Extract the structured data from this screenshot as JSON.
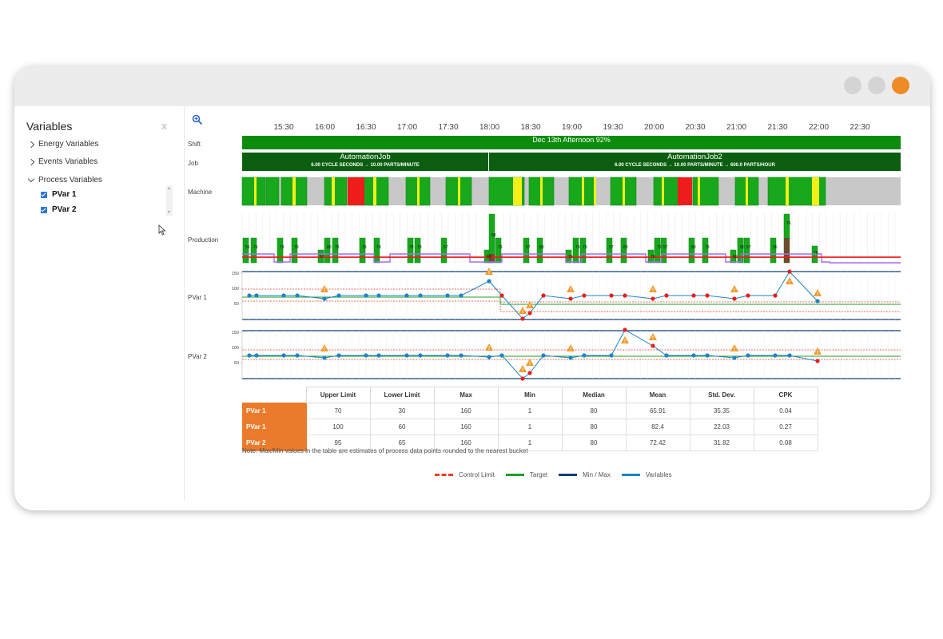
{
  "window": {
    "controls": [
      "minimize",
      "maximize",
      "close"
    ],
    "accent": "#ef8b25"
  },
  "sidebar": {
    "title": "Variables",
    "close_label": "x",
    "items": [
      {
        "label": "Energy Variables",
        "expanded": false
      },
      {
        "label": "Events Variables",
        "expanded": false
      },
      {
        "label": "Process Variables",
        "expanded": true
      }
    ],
    "process_variables": [
      {
        "label": "PVar 1",
        "checked": true
      },
      {
        "label": "PVar 2",
        "checked": true
      }
    ]
  },
  "timeline": {
    "times": [
      "15:30",
      "16:00",
      "16:30",
      "17:00",
      "17:30",
      "18:00",
      "18:30",
      "19:00",
      "19:30",
      "20:00",
      "20:30",
      "21:00",
      "21:30",
      "22:00",
      "22:30"
    ]
  },
  "rows": {
    "shift_label": "Shift",
    "job_label": "Job",
    "machine_label": "Machine",
    "production_label": "Production",
    "pvar1_label": "PVar 1",
    "pvar2_label": "PVar 2"
  },
  "shift": {
    "text": "Dec 13th Afternoon 92%"
  },
  "jobs": [
    {
      "name": "AutomationJob",
      "details": "6.00 CYCLE SECONDS → 10.00 PARTS/MINUTE"
    },
    {
      "name": "AutomationJob2",
      "details": "6.00 CYCLE SECONDS → 10.00 PARTS/MINUTE → 600.0 PARTS/HOUR"
    }
  ],
  "colors": {
    "running": "#17a81c",
    "dark_running": "#0f8a14",
    "idle": "#c8c8c8",
    "warning": "#f4ef16",
    "down": "#ef1c1c",
    "control_limit": "#ee3d22",
    "target": "#1e9f27",
    "minmax": "#0c3f73",
    "variables": "#1a86c4",
    "purple": "#a56cf0"
  },
  "production_labels": [
    "56",
    "76",
    "79",
    "79",
    "57",
    "80",
    "79",
    "79",
    "79",
    "79",
    "79",
    "57",
    "80",
    "88",
    "79",
    "57",
    "80",
    "79",
    "79",
    "79",
    "57",
    "80",
    "79",
    "79",
    "57",
    "80",
    "79",
    "80",
    "80",
    "57"
  ],
  "pvar_axis_ticks": [
    "150",
    "100",
    "50"
  ],
  "stats_table": {
    "headers": [
      "",
      "Upper Limit",
      "Lower Limit",
      "Max",
      "Min",
      "Median",
      "Mean",
      "Std. Dev.",
      "CPK"
    ],
    "rows": [
      [
        "PVar 1",
        "70",
        "30",
        "160",
        "1",
        "80",
        "65.91",
        "35.35",
        "0.04"
      ],
      [
        "PVar 1",
        "100",
        "60",
        "160",
        "1",
        "80",
        "82.4",
        "22.03",
        "0.27"
      ],
      [
        "PVar 2",
        "95",
        "65",
        "160",
        "1",
        "80",
        "72.42",
        "31.82",
        "0.08"
      ]
    ]
  },
  "note": "Note: Max/Min values in the table are estimates of process data points rounded to the nearest bucket",
  "legend": [
    {
      "label": "Control Limit",
      "color": "#ee3d22",
      "style": "dashed"
    },
    {
      "label": "Target",
      "color": "#1e9f27",
      "style": "solid"
    },
    {
      "label": "Min / Max",
      "color": "#0c3f73",
      "style": "solid"
    },
    {
      "label": "Variables",
      "color": "#1a86c4",
      "style": "solid"
    }
  ]
}
